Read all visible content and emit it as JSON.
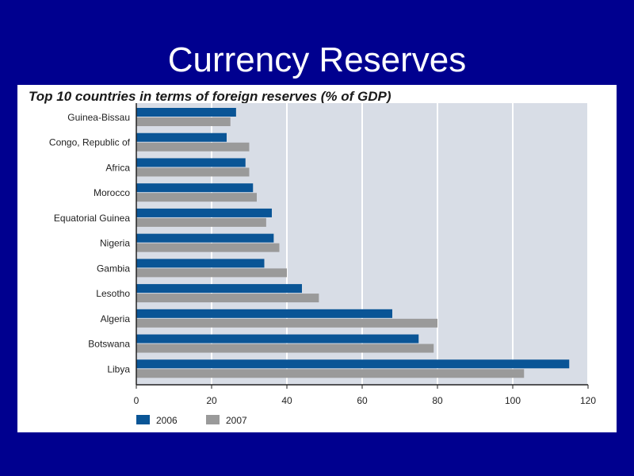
{
  "slide": {
    "title": "Currency Reserves"
  },
  "chart_data": {
    "type": "bar",
    "orientation": "horizontal",
    "title": "Top 10 countries in terms of foreign reserves (% of GDP)",
    "categories": [
      "Guinea-Bissau",
      "Congo, Republic of",
      "Africa",
      "Morocco",
      "Equatorial Guinea",
      "Nigeria",
      "Gambia",
      "Lesotho",
      "Algeria",
      "Botswana",
      "Libya"
    ],
    "series": [
      {
        "name": "2006",
        "color": "#0a5596",
        "values": [
          26.5,
          24,
          29,
          31,
          36,
          36.5,
          34,
          44,
          68,
          75,
          115
        ]
      },
      {
        "name": "2007",
        "color": "#9a9a9a",
        "values": [
          25,
          30,
          30,
          32,
          34.5,
          38,
          40,
          48.5,
          80,
          79,
          103
        ]
      }
    ],
    "xticks": [
      "0",
      "20",
      "40",
      "60",
      "80",
      "100",
      "120"
    ],
    "xlim": [
      0,
      120
    ],
    "grid": true,
    "plot_background": "#d8dde6",
    "legend_position": "bottom-left"
  }
}
